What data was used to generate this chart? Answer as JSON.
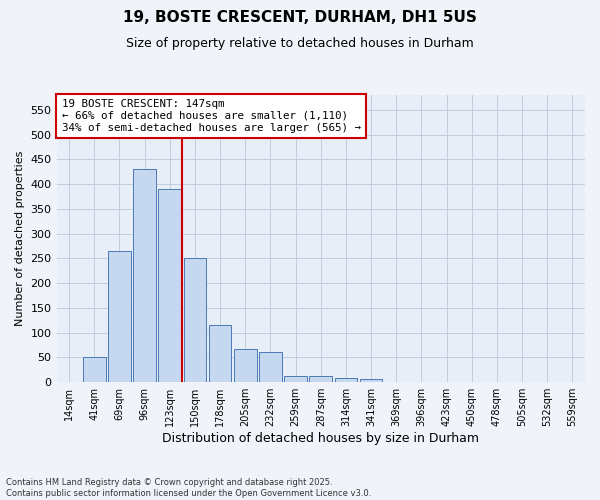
{
  "title1": "19, BOSTE CRESCENT, DURHAM, DH1 5US",
  "title2": "Size of property relative to detached houses in Durham",
  "xlabel": "Distribution of detached houses by size in Durham",
  "ylabel": "Number of detached properties",
  "categories": [
    "14sqm",
    "41sqm",
    "69sqm",
    "96sqm",
    "123sqm",
    "150sqm",
    "178sqm",
    "205sqm",
    "232sqm",
    "259sqm",
    "287sqm",
    "314sqm",
    "341sqm",
    "369sqm",
    "396sqm",
    "423sqm",
    "450sqm",
    "478sqm",
    "505sqm",
    "532sqm",
    "559sqm"
  ],
  "bar_heights": [
    0,
    50,
    265,
    430,
    390,
    250,
    115,
    68,
    60,
    12,
    12,
    8,
    6,
    0,
    0,
    0,
    0,
    0,
    0,
    0,
    0
  ],
  "bar_color": "#c5d8f0",
  "bar_edge_color": "#4a7ab5",
  "vline_x_index": 5,
  "vline_color": "#cc0000",
  "annotation_line1": "19 BOSTE CRESCENT: 147sqm",
  "annotation_line2": "← 66% of detached houses are smaller (1,110)",
  "annotation_line3": "34% of semi-detached houses are larger (565) →",
  "annotation_box_color": "#cc0000",
  "ylim_max": 580,
  "yticks": [
    0,
    50,
    100,
    150,
    200,
    250,
    300,
    350,
    400,
    450,
    500,
    550
  ],
  "grid_color": "#c0cde0",
  "bg_color": "#e8eef8",
  "fig_bg_color": "#f0f4fa",
  "footnote": "Contains HM Land Registry data © Crown copyright and database right 2025.\nContains public sector information licensed under the Open Government Licence v3.0."
}
